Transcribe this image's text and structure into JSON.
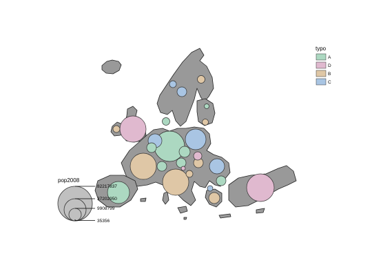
{
  "legend_typo": {
    "title": "typo",
    "items": [
      {
        "label": "A",
        "color": "#acd8c1"
      },
      {
        "label": "D",
        "color": "#e0b9cf"
      },
      {
        "label": "B",
        "color": "#dfc7a6"
      },
      {
        "label": "C",
        "color": "#a9c5e3"
      }
    ]
  },
  "legend_pop": {
    "title": "pop2008",
    "values": [
      "82217837",
      "37202950",
      "9908799",
      "35356"
    ]
  },
  "land_color": "#999999",
  "bubbles": [
    {
      "typo": "A",
      "size": "large"
    },
    {
      "typo": "D",
      "size": "large"
    },
    {
      "typo": "D",
      "size": "large"
    },
    {
      "typo": "B",
      "size": "large"
    },
    {
      "typo": "B",
      "size": "large"
    },
    {
      "typo": "C",
      "size": "medium"
    },
    {
      "typo": "C",
      "size": "medium"
    },
    {
      "typo": "A",
      "size": "medium"
    },
    {
      "typo": "C",
      "size": "medium"
    },
    {
      "typo": "A",
      "size": "small"
    },
    {
      "typo": "A",
      "size": "small"
    },
    {
      "typo": "A",
      "size": "small"
    },
    {
      "typo": "A",
      "size": "small"
    },
    {
      "typo": "B",
      "size": "small"
    },
    {
      "typo": "C",
      "size": "small"
    },
    {
      "typo": "B",
      "size": "small"
    },
    {
      "typo": "A",
      "size": "small"
    },
    {
      "typo": "D",
      "size": "small"
    },
    {
      "typo": "B",
      "size": "small"
    },
    {
      "typo": "C",
      "size": "small"
    },
    {
      "typo": "B",
      "size": "small"
    },
    {
      "typo": "C",
      "size": "small"
    },
    {
      "typo": "A",
      "size": "small"
    },
    {
      "typo": "A",
      "size": "small"
    },
    {
      "typo": "B",
      "size": "small"
    },
    {
      "typo": "C",
      "size": "small"
    },
    {
      "typo": "D",
      "size": "small"
    },
    {
      "typo": "B",
      "size": "small"
    }
  ]
}
